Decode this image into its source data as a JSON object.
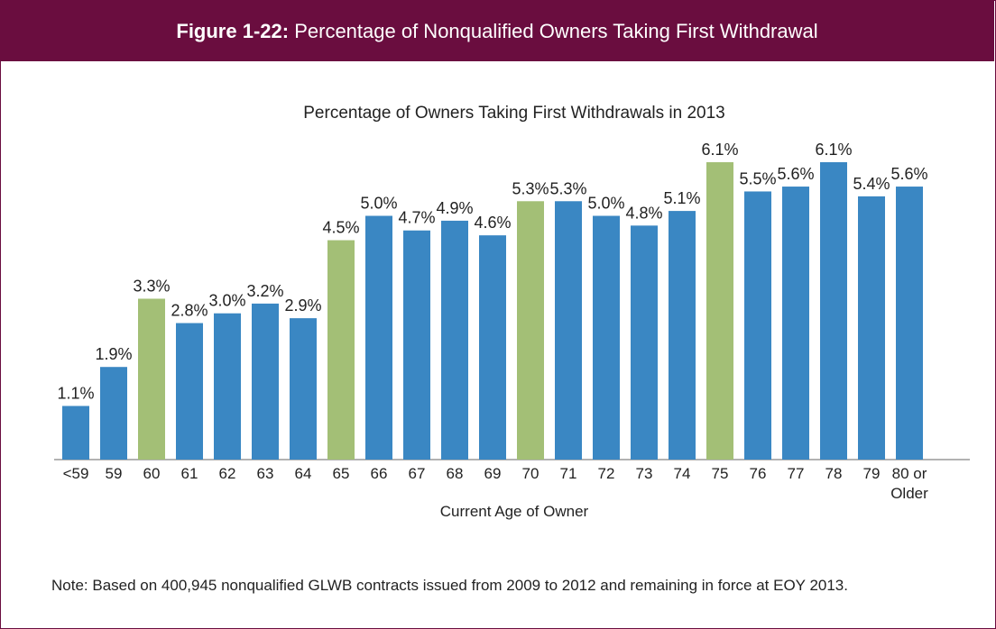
{
  "chart_data": {
    "type": "bar",
    "figure_label": "Figure 1-22:",
    "title": "Percentage of Nonqualified Owners Taking First Withdrawal",
    "subtitle": "Percentage of Owners Taking First Withdrawals in 2013",
    "x_label": "Current Age of Owner",
    "categories": [
      "<59",
      "59",
      "60",
      "61",
      "62",
      "63",
      "64",
      "65",
      "66",
      "67",
      "68",
      "69",
      "70",
      "71",
      "72",
      "73",
      "74",
      "75",
      "76",
      "77",
      "78",
      "79",
      "80 or\nOlder"
    ],
    "values": [
      1.1,
      1.9,
      3.3,
      2.8,
      3.0,
      3.2,
      2.9,
      4.5,
      5.0,
      4.7,
      4.9,
      4.6,
      5.3,
      5.3,
      5.0,
      4.8,
      5.1,
      6.1,
      5.5,
      5.6,
      6.1,
      5.4,
      5.6
    ],
    "value_labels": [
      "1.1%",
      "1.9%",
      "3.3%",
      "2.8%",
      "3.0%",
      "3.2%",
      "2.9%",
      "4.5%",
      "5.0%",
      "4.7%",
      "4.9%",
      "4.6%",
      "5.3%",
      "5.3%",
      "5.0%",
      "4.8%",
      "5.1%",
      "6.1%",
      "5.5%",
      "5.6%",
      "6.1%",
      "5.4%",
      "5.6%"
    ],
    "colors": [
      "#3a87c3",
      "#3a87c3",
      "#a3bf76",
      "#3a87c3",
      "#3a87c3",
      "#3a87c3",
      "#3a87c3",
      "#a3bf76",
      "#3a87c3",
      "#3a87c3",
      "#3a87c3",
      "#3a87c3",
      "#a3bf76",
      "#3a87c3",
      "#3a87c3",
      "#3a87c3",
      "#3a87c3",
      "#a3bf76",
      "#3a87c3",
      "#3a87c3",
      "#3a87c3",
      "#3a87c3",
      "#3a87c3"
    ],
    "note": "Note: Based on 400,945 nonqualified GLWB contracts issued from 2009 to 2012 and remaining in force at EOY 2013."
  }
}
